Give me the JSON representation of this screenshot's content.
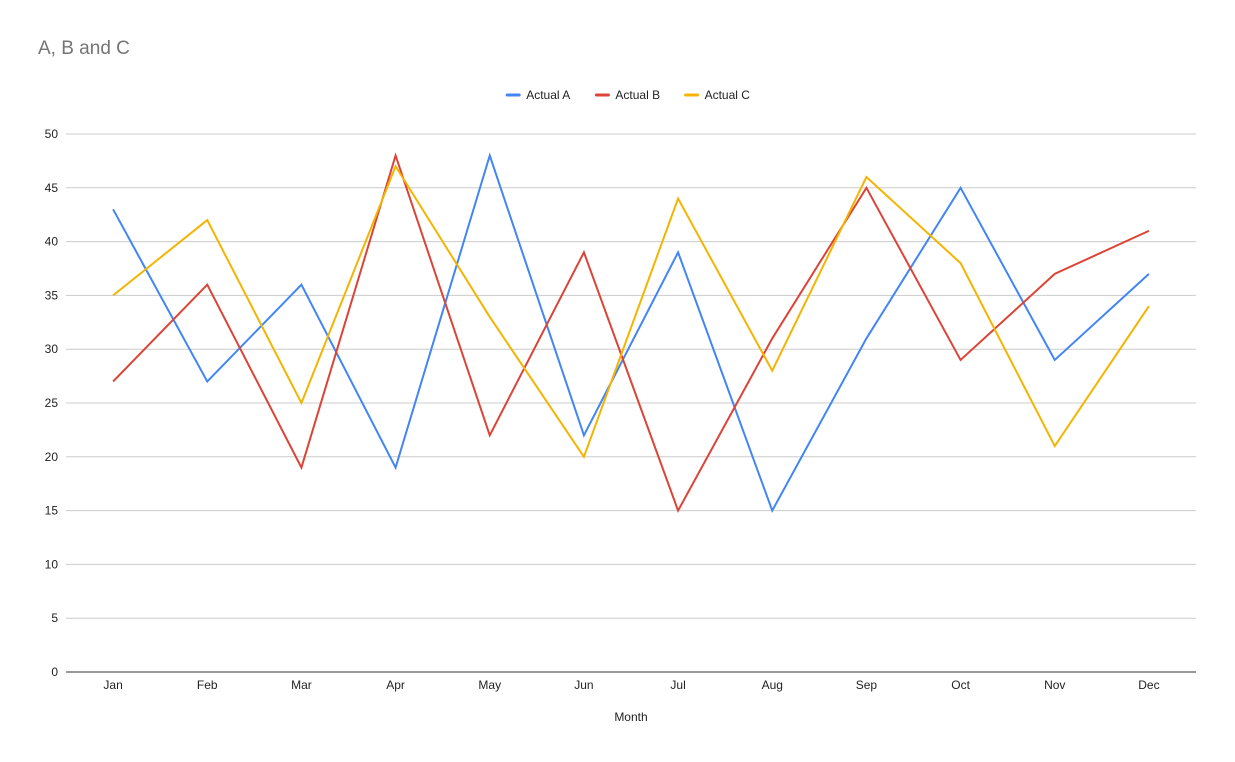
{
  "chart_data": {
    "type": "line",
    "title": "A, B and C",
    "xlabel": "Month",
    "ylabel": "",
    "ylim": [
      0,
      50
    ],
    "yticks": [
      0,
      5,
      10,
      15,
      20,
      25,
      30,
      35,
      40,
      45,
      50
    ],
    "grid": true,
    "legend_position": "top-center",
    "categories": [
      "Jan",
      "Feb",
      "Mar",
      "Apr",
      "May",
      "Jun",
      "Jul",
      "Aug",
      "Sep",
      "Oct",
      "Nov",
      "Dec"
    ],
    "series": [
      {
        "name": "Actual A",
        "color": "#4285F4",
        "values": [
          43,
          27,
          36,
          19,
          48,
          22,
          39,
          15,
          31,
          45,
          29,
          37
        ]
      },
      {
        "name": "Actual B",
        "color": "#DB4437",
        "values": [
          27,
          36,
          19,
          48,
          22,
          39,
          15,
          31,
          45,
          29,
          37,
          41
        ]
      },
      {
        "name": "Actual C",
        "color": "#F4B400",
        "values": [
          35,
          42,
          25,
          47,
          33,
          20,
          44,
          28,
          46,
          38,
          21,
          34
        ]
      }
    ]
  }
}
